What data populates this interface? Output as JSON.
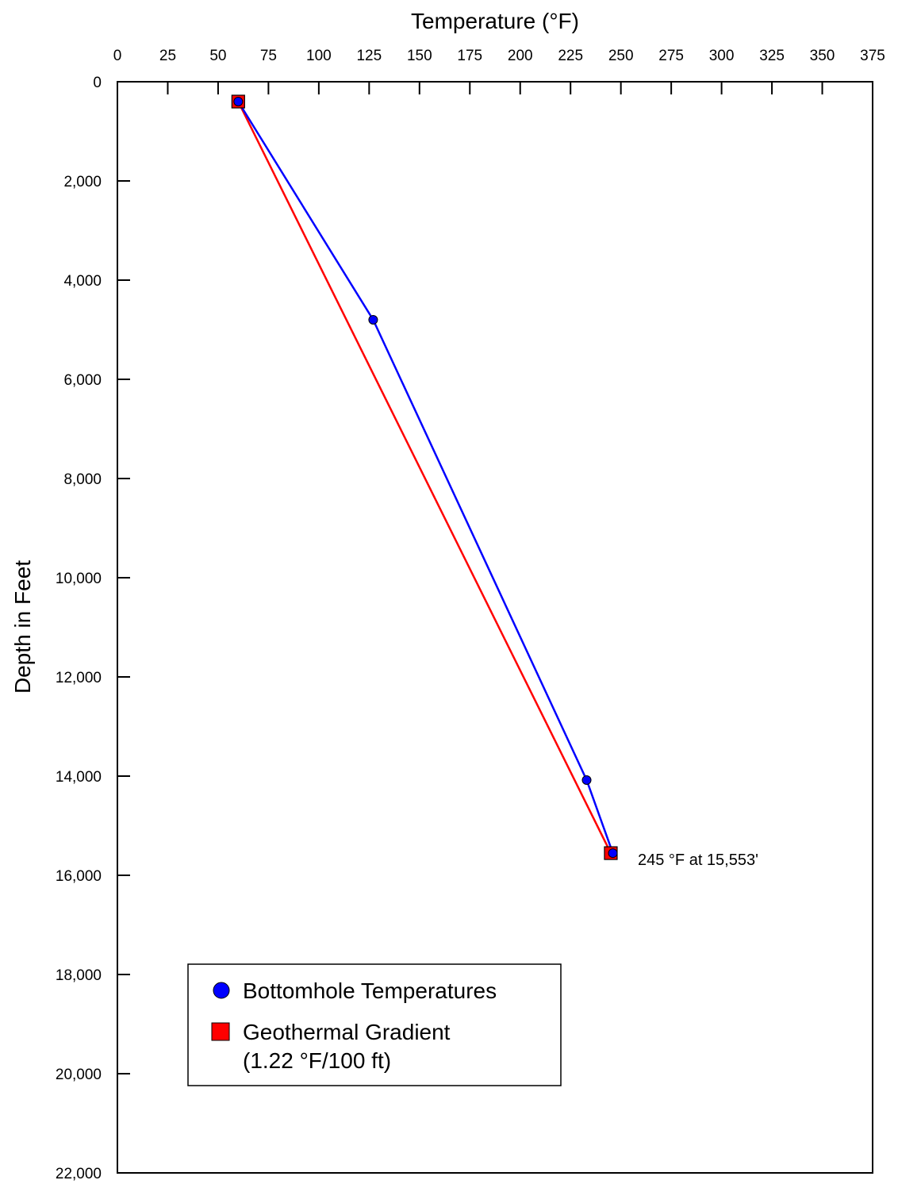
{
  "chart_data": {
    "type": "line",
    "xlabel": "Temperature (°F)",
    "ylabel": "Depth in Feet",
    "xlim": [
      0,
      375
    ],
    "ylim": [
      0,
      22000
    ],
    "y_inverted": true,
    "x_axis_position": "top",
    "grid": false,
    "xticks": [
      0,
      25,
      50,
      75,
      100,
      125,
      150,
      175,
      200,
      225,
      250,
      275,
      300,
      325,
      350,
      375
    ],
    "yticks": [
      0,
      2000,
      4000,
      6000,
      8000,
      10000,
      12000,
      14000,
      16000,
      18000,
      20000,
      22000
    ],
    "xtick_labels": [
      "0",
      "25",
      "50",
      "75",
      "100",
      "125",
      "150",
      "175",
      "200",
      "225",
      "250",
      "275",
      "300",
      "325",
      "350",
      "375"
    ],
    "ytick_labels": [
      "0",
      "2,000",
      "4,000",
      "6,000",
      "8,000",
      "10,000",
      "12,000",
      "14,000",
      "16,000",
      "18,000",
      "20,000",
      "22,000"
    ],
    "series": [
      {
        "name": "Bottomhole Temperatures",
        "color": "#0000ff",
        "marker": "circle",
        "points": [
          {
            "x": 60,
            "y": 400
          },
          {
            "x": 127,
            "y": 4800
          },
          {
            "x": 233,
            "y": 14080
          },
          {
            "x": 246,
            "y": 15553
          }
        ]
      },
      {
        "name": "Geothermal Gradient",
        "name_line2": "(1.22 °F/100 ft)",
        "color": "#ff0000",
        "marker": "square",
        "points": [
          {
            "x": 60,
            "y": 400
          },
          {
            "x": 245,
            "y": 15553
          }
        ]
      }
    ],
    "annotations": [
      {
        "text": "245 °F at 15,553'",
        "x": 245,
        "y": 15553
      }
    ],
    "legend_position": "bottom-left"
  }
}
